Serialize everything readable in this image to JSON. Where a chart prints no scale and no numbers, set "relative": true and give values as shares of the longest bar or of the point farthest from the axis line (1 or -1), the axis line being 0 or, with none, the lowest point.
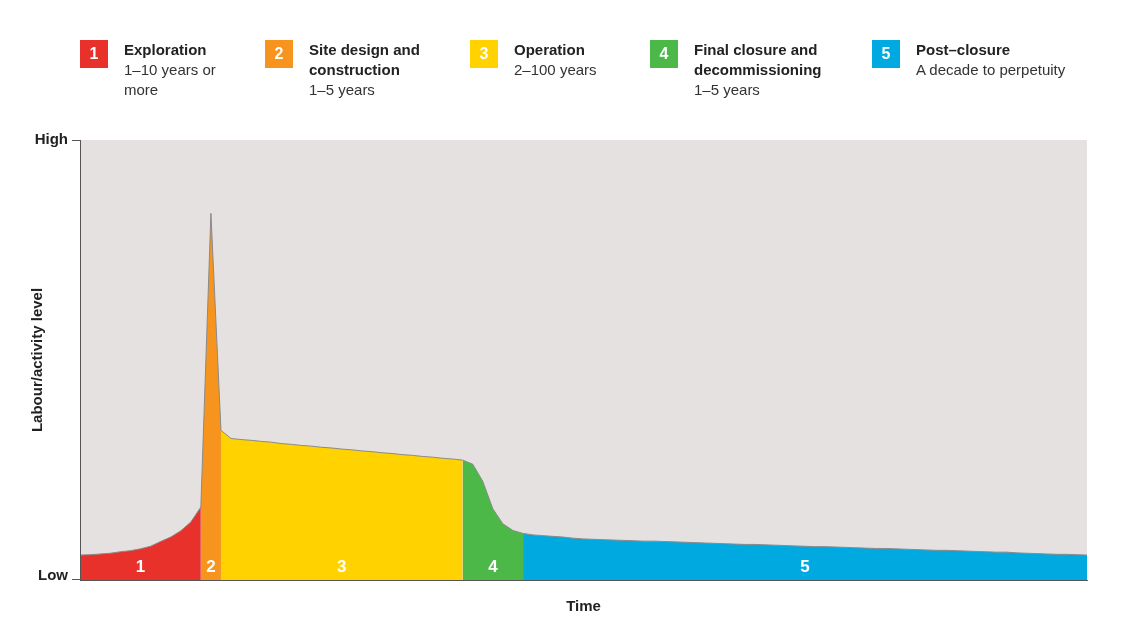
{
  "chart_data": {
    "type": "area",
    "xlabel": "Time",
    "ylabel": "Labour/activity level",
    "relative": true,
    "categories": [
      null,
      null,
      null,
      null,
      null,
      null,
      null,
      null,
      null,
      null,
      null,
      null,
      null,
      null,
      null,
      null,
      null,
      null,
      null,
      null,
      null,
      null,
      null,
      null,
      null,
      null,
      null,
      null,
      null,
      null,
      null,
      null,
      null,
      null,
      null,
      null,
      null,
      null,
      null,
      null,
      null,
      null,
      null,
      null,
      null,
      null,
      null,
      null,
      null,
      null,
      null,
      null,
      null,
      null,
      null,
      null,
      null,
      null,
      null,
      null,
      null,
      null,
      null,
      null,
      null,
      null,
      null,
      null,
      null,
      null,
      null,
      null,
      null,
      null,
      null,
      null,
      null,
      null,
      null,
      null,
      null,
      null,
      null,
      null,
      null,
      null,
      null,
      null,
      null,
      null,
      null,
      null,
      null,
      null,
      null,
      null,
      null,
      null,
      null,
      null,
      null
    ],
    "tick_labels": false,
    "legend": "top",
    "series": [
      {
        "name": "Exploration",
        "color": "#e8312a",
        "values": [
          0.068,
          0.069,
          0.071,
          0.073,
          0.077,
          0.08,
          0.085,
          0.092,
          0.105,
          0.117,
          0.134,
          0.158,
          0.199,
          null,
          null,
          null,
          null,
          null,
          null,
          null,
          null,
          null,
          null,
          null,
          null,
          null,
          null,
          null,
          null,
          null,
          null,
          null,
          null,
          null,
          null,
          null,
          null,
          null,
          null,
          null,
          null,
          null,
          null,
          null,
          null,
          null,
          null,
          null,
          null,
          null,
          null,
          null,
          null,
          null,
          null,
          null,
          null,
          null,
          null,
          null,
          null,
          null,
          null,
          null,
          null,
          null,
          null,
          null,
          null,
          null,
          null,
          null,
          null,
          null,
          null,
          null,
          null,
          null,
          null,
          null,
          null,
          null,
          null,
          null,
          null,
          null,
          null,
          null,
          null,
          null,
          null,
          null,
          null,
          null,
          null,
          null,
          null,
          null,
          null,
          null,
          null
        ]
      },
      {
        "name": "Site design and construction",
        "color": "#f7941d",
        "values": [
          null,
          null,
          null,
          null,
          null,
          null,
          null,
          null,
          null,
          null,
          null,
          null,
          0.199,
          1,
          0.408,
          null,
          null,
          null,
          null,
          null,
          null,
          null,
          null,
          null,
          null,
          null,
          null,
          null,
          null,
          null,
          null,
          null,
          null,
          null,
          null,
          null,
          null,
          null,
          null,
          null,
          null,
          null,
          null,
          null,
          null,
          null,
          null,
          null,
          null,
          null,
          null,
          null,
          null,
          null,
          null,
          null,
          null,
          null,
          null,
          null,
          null,
          null,
          null,
          null,
          null,
          null,
          null,
          null,
          null,
          null,
          null,
          null,
          null,
          null,
          null,
          null,
          null,
          null,
          null,
          null,
          null,
          null,
          null,
          null,
          null,
          null,
          null,
          null,
          null,
          null,
          null,
          null,
          null,
          null,
          null,
          null,
          null,
          null,
          null,
          null,
          null
        ]
      },
      {
        "name": "Operation",
        "color": "#ffd200",
        "values": [
          null,
          null,
          null,
          null,
          null,
          null,
          null,
          null,
          null,
          null,
          null,
          null,
          null,
          null,
          0.408,
          0.386,
          0.383,
          0.381,
          0.378,
          0.376,
          0.372,
          0.37,
          0.367,
          0.365,
          0.362,
          0.36,
          0.357,
          0.355,
          0.352,
          0.35,
          0.347,
          0.345,
          0.342,
          0.34,
          0.337,
          0.335,
          0.332,
          0.33,
          0.327,
          null,
          null,
          null,
          null,
          null,
          null,
          null,
          null,
          null,
          null,
          null,
          null,
          null,
          null,
          null,
          null,
          null,
          null,
          null,
          null,
          null,
          null,
          null,
          null,
          null,
          null,
          null,
          null,
          null,
          null,
          null,
          null,
          null,
          null,
          null,
          null,
          null,
          null,
          null,
          null,
          null,
          null,
          null,
          null,
          null,
          null,
          null,
          null,
          null,
          null,
          null,
          null,
          null,
          null,
          null,
          null,
          null,
          null,
          null,
          null,
          null,
          null
        ]
      },
      {
        "name": "Final closure and decommissioning",
        "color": "#4cb848",
        "values": [
          null,
          null,
          null,
          null,
          null,
          null,
          null,
          null,
          null,
          null,
          null,
          null,
          null,
          null,
          null,
          null,
          null,
          null,
          null,
          null,
          null,
          null,
          null,
          null,
          null,
          null,
          null,
          null,
          null,
          null,
          null,
          null,
          null,
          null,
          null,
          null,
          null,
          null,
          0.327,
          0.316,
          0.269,
          0.194,
          0.153,
          0.135,
          0.127,
          null,
          null,
          null,
          null,
          null,
          null,
          null,
          null,
          null,
          null,
          null,
          null,
          null,
          null,
          null,
          null,
          null,
          null,
          null,
          null,
          null,
          null,
          null,
          null,
          null,
          null,
          null,
          null,
          null,
          null,
          null,
          null,
          null,
          null,
          null,
          null,
          null,
          null,
          null,
          null,
          null,
          null,
          null,
          null,
          null,
          null,
          null,
          null,
          null,
          null,
          null,
          null,
          null,
          null,
          null,
          null
        ]
      },
      {
        "name": "Post–closure",
        "color": "#00a9e0",
        "values": [
          null,
          null,
          null,
          null,
          null,
          null,
          null,
          null,
          null,
          null,
          null,
          null,
          null,
          null,
          null,
          null,
          null,
          null,
          null,
          null,
          null,
          null,
          null,
          null,
          null,
          null,
          null,
          null,
          null,
          null,
          null,
          null,
          null,
          null,
          null,
          null,
          null,
          null,
          null,
          null,
          null,
          null,
          null,
          null,
          0.127,
          0.123,
          0.121,
          0.119,
          0.117,
          0.114,
          0.112,
          0.111,
          0.11,
          0.109,
          0.108,
          0.107,
          0.106,
          0.106,
          0.105,
          0.104,
          0.103,
          0.102,
          0.101,
          0.1,
          0.099,
          0.098,
          0.097,
          0.097,
          0.096,
          0.095,
          0.094,
          0.093,
          0.092,
          0.091,
          0.091,
          0.09,
          0.089,
          0.088,
          0.087,
          0.086,
          0.086,
          0.085,
          0.084,
          0.083,
          0.082,
          0.081,
          0.081,
          0.08,
          0.079,
          0.078,
          0.077,
          0.076,
          0.076,
          0.074,
          0.073,
          0.072,
          0.071,
          0.07,
          0.07,
          0.069,
          0.068
        ]
      }
    ],
    "annotations": [
      "1",
      "2",
      "3",
      "4",
      "5",
      "1–10 years or more",
      "1–5 years",
      "2–100 years",
      "1–5 years",
      "A decade to perpetuity",
      "High",
      "Low"
    ]
  }
}
